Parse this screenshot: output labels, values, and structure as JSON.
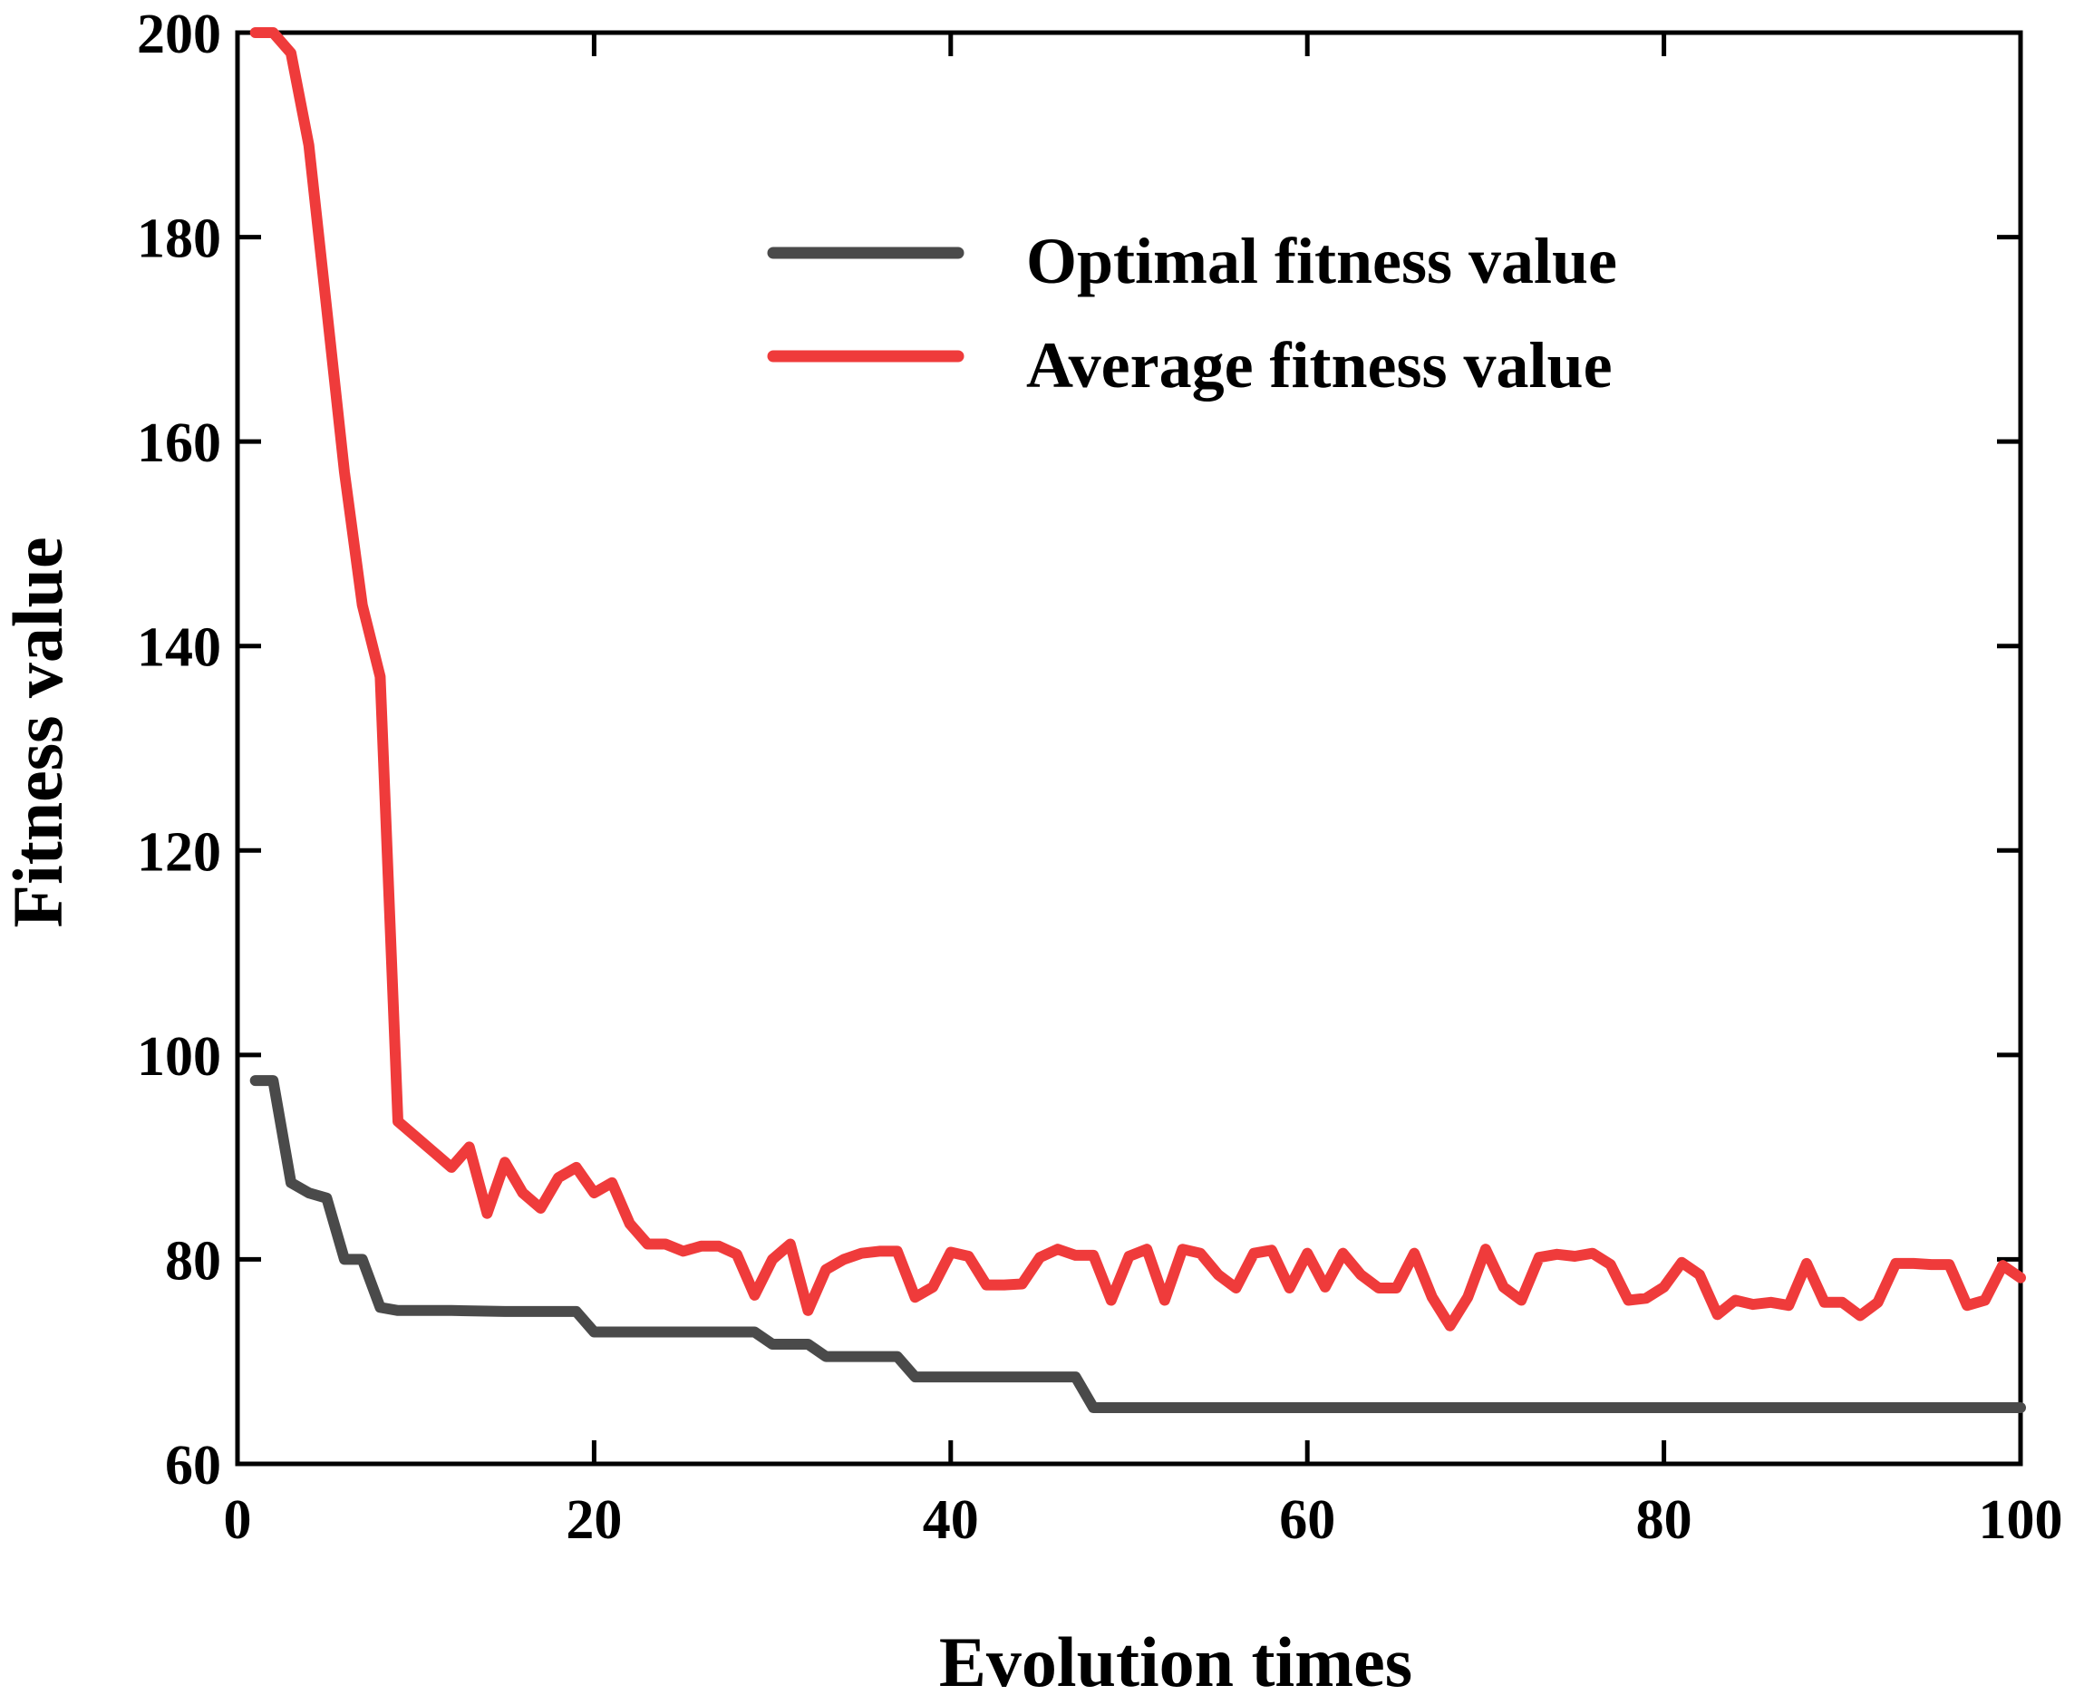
{
  "chart_data": {
    "type": "line",
    "title": "",
    "xlabel": "Evolution times",
    "ylabel": "Fitness value",
    "xlim": [
      0,
      100
    ],
    "ylim": [
      60,
      200
    ],
    "xticks": [
      0,
      20,
      40,
      60,
      80,
      100
    ],
    "yticks": [
      60,
      80,
      100,
      120,
      140,
      160,
      180,
      200
    ],
    "xtick_labels": [
      "0",
      "20",
      "40",
      "60",
      "80",
      "100"
    ],
    "ytick_labels": [
      "60",
      "80",
      "100",
      "120",
      "140",
      "160",
      "180",
      "200"
    ],
    "grid": false,
    "legend_position": "top-right",
    "series": [
      {
        "name": "Optimal fitness value",
        "color": "#4a4a4a",
        "points": [
          [
            1,
            97.5
          ],
          [
            2,
            97.5
          ],
          [
            3,
            87.5
          ],
          [
            4,
            86.5
          ],
          [
            5,
            86
          ],
          [
            6,
            80
          ],
          [
            7,
            80
          ],
          [
            8,
            75.3
          ],
          [
            9,
            75
          ],
          [
            12,
            75
          ],
          [
            15,
            74.9
          ],
          [
            19,
            74.9
          ],
          [
            20,
            72.9
          ],
          [
            29,
            72.9
          ],
          [
            30,
            71.7
          ],
          [
            32,
            71.7
          ],
          [
            33,
            70.5
          ],
          [
            37,
            70.5
          ],
          [
            38,
            68.5
          ],
          [
            47,
            68.5
          ],
          [
            48,
            65.5
          ],
          [
            100,
            65.5
          ]
        ]
      },
      {
        "name": "Average fitness value",
        "color": "#ef3b3b",
        "points": [
          [
            1,
            200
          ],
          [
            2,
            200
          ],
          [
            3,
            198
          ],
          [
            4,
            189
          ],
          [
            5,
            173
          ],
          [
            6,
            157
          ],
          [
            7,
            144
          ],
          [
            8,
            137
          ],
          [
            9,
            93.5
          ],
          [
            10,
            92
          ],
          [
            11,
            90.5
          ],
          [
            12,
            89
          ],
          [
            13,
            91
          ],
          [
            14,
            84.5
          ],
          [
            15,
            89.5
          ],
          [
            16,
            86.5
          ],
          [
            17,
            85
          ],
          [
            18,
            88
          ],
          [
            19,
            89
          ],
          [
            20,
            86.5
          ],
          [
            21,
            87.5
          ],
          [
            22,
            83.5
          ],
          [
            23,
            81.5
          ],
          [
            24,
            81.5
          ],
          [
            25,
            80.8
          ],
          [
            26,
            81.3
          ],
          [
            27,
            81.3
          ],
          [
            28,
            80.5
          ],
          [
            29,
            76.5
          ],
          [
            30,
            80
          ],
          [
            31,
            81.5
          ],
          [
            32,
            75
          ],
          [
            33,
            79
          ],
          [
            34,
            80
          ],
          [
            35,
            80.6
          ],
          [
            36,
            80.8
          ],
          [
            37,
            80.8
          ],
          [
            38,
            76.3
          ],
          [
            39,
            77.3
          ],
          [
            40,
            80.7
          ],
          [
            41,
            80.3
          ],
          [
            42,
            77.5
          ],
          [
            43,
            77.5
          ],
          [
            44,
            77.6
          ],
          [
            45,
            80.2
          ],
          [
            46,
            81
          ],
          [
            47,
            80.4
          ],
          [
            48,
            80.4
          ],
          [
            49,
            76
          ],
          [
            50,
            80.3
          ],
          [
            51,
            81
          ],
          [
            52,
            76
          ],
          [
            53,
            81
          ],
          [
            54,
            80.6
          ],
          [
            55,
            78.5
          ],
          [
            56,
            77.2
          ],
          [
            57,
            80.6
          ],
          [
            58,
            80.9
          ],
          [
            59,
            77.2
          ],
          [
            60,
            80.6
          ],
          [
            61,
            77.3
          ],
          [
            62,
            80.6
          ],
          [
            63,
            78.5
          ],
          [
            64,
            77.2
          ],
          [
            65,
            77.2
          ],
          [
            66,
            80.6
          ],
          [
            67,
            76.3
          ],
          [
            68,
            73.5
          ],
          [
            69,
            76.3
          ],
          [
            70,
            81
          ],
          [
            71,
            77.3
          ],
          [
            72,
            76
          ],
          [
            73,
            80.2
          ],
          [
            74,
            80.5
          ],
          [
            75,
            80.3
          ],
          [
            76,
            80.6
          ],
          [
            77,
            79.5
          ],
          [
            78,
            76
          ],
          [
            79,
            76.2
          ],
          [
            80,
            77.3
          ],
          [
            81,
            79.7
          ],
          [
            82,
            78.5
          ],
          [
            83,
            74.6
          ],
          [
            84,
            76
          ],
          [
            85,
            75.6
          ],
          [
            86,
            75.8
          ],
          [
            87,
            75.5
          ],
          [
            88,
            79.6
          ],
          [
            89,
            75.8
          ],
          [
            90,
            75.8
          ],
          [
            91,
            74.5
          ],
          [
            92,
            75.8
          ],
          [
            93,
            79.6
          ],
          [
            94,
            79.6
          ],
          [
            95,
            79.5
          ],
          [
            96,
            79.5
          ],
          [
            97,
            75.5
          ],
          [
            98,
            76
          ],
          [
            99,
            79.4
          ],
          [
            100,
            78.2
          ]
        ]
      }
    ]
  }
}
